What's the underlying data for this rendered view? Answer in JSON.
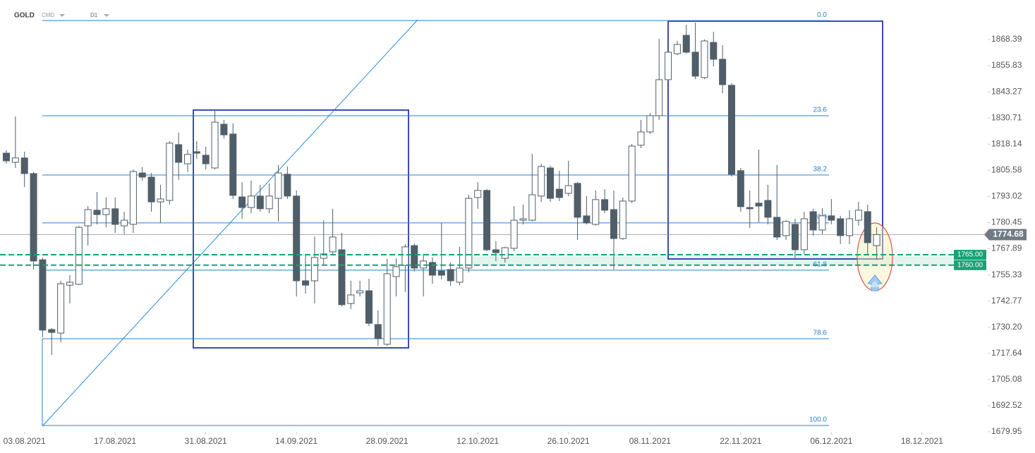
{
  "header": {
    "symbol": "GOLD",
    "market": "CMD",
    "interval": "D1"
  },
  "chart_data": {
    "type": "candlestick",
    "x": [
      "30.07.2021",
      "02.08.2021",
      "03.08.2021",
      "04.08.2021",
      "05.08.2021",
      "06.08.2021",
      "09.08.2021",
      "10.08.2021",
      "11.08.2021",
      "12.08.2021",
      "13.08.2021",
      "16.08.2021",
      "17.08.2021",
      "18.08.2021",
      "19.08.2021",
      "20.08.2021",
      "23.08.2021",
      "24.08.2021",
      "25.08.2021",
      "26.08.2021",
      "27.08.2021",
      "30.08.2021",
      "31.08.2021",
      "01.09.2021",
      "02.09.2021",
      "03.09.2021",
      "06.09.2021",
      "07.09.2021",
      "08.09.2021",
      "09.09.2021",
      "10.09.2021",
      "13.09.2021",
      "14.09.2021",
      "15.09.2021",
      "16.09.2021",
      "17.09.2021",
      "20.09.2021",
      "21.09.2021",
      "22.09.2021",
      "23.09.2021",
      "24.09.2021",
      "27.09.2021",
      "28.09.2021",
      "29.09.2021",
      "30.09.2021",
      "01.10.2021",
      "04.10.2021",
      "05.10.2021",
      "06.10.2021",
      "07.10.2021",
      "08.10.2021",
      "11.10.2021",
      "12.10.2021",
      "13.10.2021",
      "14.10.2021",
      "15.10.2021",
      "18.10.2021",
      "19.10.2021",
      "20.10.2021",
      "21.10.2021",
      "22.10.2021",
      "25.10.2021",
      "26.10.2021",
      "27.10.2021",
      "28.10.2021",
      "29.10.2021",
      "01.11.2021",
      "02.11.2021",
      "03.11.2021",
      "04.11.2021",
      "05.11.2021",
      "08.11.2021",
      "09.11.2021",
      "10.11.2021",
      "11.11.2021",
      "12.11.2021",
      "15.11.2021",
      "16.11.2021",
      "17.11.2021",
      "18.11.2021",
      "19.11.2021",
      "22.11.2021",
      "23.11.2021",
      "24.11.2021",
      "25.11.2021",
      "26.11.2021",
      "29.11.2021",
      "30.11.2021",
      "01.12.2021",
      "02.12.2021",
      "03.12.2021",
      "06.12.2021",
      "07.12.2021",
      "08.12.2021",
      "09.12.2021",
      "10.12.2021",
      "13.12.2021"
    ],
    "open": [
      1813.8,
      1809.4,
      1811.5,
      1804.0,
      1762.6,
      1729.1,
      1727.4,
      1750.4,
      1750.8,
      1778.9,
      1786.4,
      1784.3,
      1787.1,
      1778.9,
      1779.6,
      1804.3,
      1802.3,
      1790.4,
      1791.1,
      1817.9,
      1808.7,
      1814.5,
      1812.8,
      1806.7,
      1827.7,
      1823.0,
      1792.8,
      1787.7,
      1793.2,
      1787.1,
      1792.1,
      1803.7,
      1793.2,
      1752.5,
      1752.5,
      1763.3,
      1766.4,
      1767.4,
      1741.6,
      1746.7,
      1747.7,
      1731.5,
      1722.0,
      1754.5,
      1759.9,
      1769.4,
      1758.6,
      1761.3,
      1757.2,
      1757.9,
      1751.8,
      1758.6,
      1792.5,
      1795.9,
      1767.4,
      1763.3,
      1768.1,
      1781.6,
      1781.6,
      1793.2,
      1806.7,
      1796.5,
      1794.5,
      1799.3,
      1783.7,
      1779.6,
      1791.5,
      1786.7,
      1772.8,
      1790.8,
      1817.6,
      1824.0,
      1831.8,
      1849.1,
      1861.6,
      1870.4,
      1862.3,
      1850.1,
      1867.0,
      1858.9,
      1846.4,
      1805.4,
      1787.7,
      1789.8,
      1791.1,
      1783.0,
      1774.2,
      1779.6,
      1767.4,
      1785.7,
      1776.9,
      1783.7,
      1782.3,
      1774.2,
      1781.6,
      1785.7,
      1769.4
    ],
    "high": [
      1815.2,
      1831.4,
      1814.5,
      1804.7,
      1763.7,
      1729.8,
      1752.5,
      1755.2,
      1778.9,
      1788.4,
      1795.2,
      1792.5,
      1792.5,
      1785.7,
      1806.0,
      1807.1,
      1804.3,
      1798.6,
      1819.6,
      1823.7,
      1815.5,
      1819.6,
      1816.9,
      1834.2,
      1829.8,
      1828.1,
      1799.9,
      1800.6,
      1798.6,
      1799.3,
      1808.1,
      1807.4,
      1795.9,
      1765.4,
      1773.8,
      1781.6,
      1787.1,
      1775.5,
      1752.5,
      1752.5,
      1753.5,
      1738.3,
      1763.0,
      1763.3,
      1770.1,
      1770.4,
      1765.4,
      1763.7,
      1780.3,
      1761.3,
      1768.8,
      1793.8,
      1799.9,
      1796.5,
      1771.5,
      1768.8,
      1788.4,
      1789.1,
      1813.5,
      1808.7,
      1807.7,
      1805.4,
      1810.1,
      1799.9,
      1793.2,
      1795.9,
      1796.5,
      1795.9,
      1792.5,
      1818.2,
      1829.8,
      1833.1,
      1868.7,
      1866.4,
      1867.7,
      1875.5,
      1876.5,
      1868.4,
      1872.1,
      1865.7,
      1847.4,
      1806.7,
      1795.9,
      1815.5,
      1798.6,
      1808.1,
      1781.6,
      1782.3,
      1785.7,
      1787.1,
      1787.4,
      1791.8,
      1783.7,
      1786.4,
      1790.4,
      1789.1,
      1778.2
    ],
    "low": [
      1808.7,
      1806.7,
      1797.6,
      1757.9,
      1725.4,
      1716.9,
      1723.0,
      1741.6,
      1750.4,
      1769.4,
      1779.6,
      1778.2,
      1775.5,
      1774.9,
      1775.5,
      1800.6,
      1785.7,
      1780.3,
      1789.1,
      1801.0,
      1804.7,
      1811.1,
      1806.0,
      1806.0,
      1820.9,
      1791.8,
      1782.3,
      1785.0,
      1785.7,
      1785.0,
      1781.0,
      1791.8,
      1745.0,
      1746.4,
      1741.6,
      1759.9,
      1765.4,
      1740.3,
      1738.9,
      1745.0,
      1730.8,
      1721.3,
      1721.3,
      1745.0,
      1747.1,
      1756.9,
      1745.0,
      1751.1,
      1753.2,
      1750.1,
      1750.4,
      1756.6,
      1787.1,
      1766.7,
      1762.0,
      1761.3,
      1766.7,
      1779.6,
      1781.0,
      1790.4,
      1790.4,
      1790.8,
      1793.2,
      1772.1,
      1779.6,
      1778.9,
      1785.0,
      1757.9,
      1772.1,
      1789.8,
      1816.2,
      1823.0,
      1829.8,
      1848.4,
      1860.9,
      1861.6,
      1849.4,
      1849.4,
      1855.5,
      1842.6,
      1802.6,
      1785.7,
      1777.9,
      1780.6,
      1779.6,
      1772.1,
      1772.1,
      1762.6,
      1765.4,
      1774.2,
      1774.9,
      1779.6,
      1770.1,
      1770.1,
      1778.9,
      1765.4,
      1762.6
    ],
    "close": [
      1810.1,
      1811.5,
      1804.0,
      1762.0,
      1728.8,
      1727.7,
      1751.1,
      1751.8,
      1778.2,
      1786.7,
      1784.3,
      1787.1,
      1779.6,
      1781.6,
      1805.0,
      1802.3,
      1790.4,
      1791.8,
      1818.6,
      1809.4,
      1813.2,
      1813.8,
      1808.7,
      1828.7,
      1822.6,
      1793.5,
      1787.7,
      1793.2,
      1787.1,
      1793.2,
      1804.3,
      1793.2,
      1752.5,
      1750.4,
      1763.7,
      1765.4,
      1773.5,
      1741.0,
      1745.7,
      1747.7,
      1732.1,
      1724.7,
      1755.9,
      1759.3,
      1768.8,
      1758.6,
      1762.0,
      1755.2,
      1755.2,
      1752.5,
      1758.6,
      1792.1,
      1795.9,
      1767.4,
      1766.0,
      1768.4,
      1781.6,
      1782.3,
      1793.8,
      1807.4,
      1792.1,
      1792.5,
      1798.2,
      1783.0,
      1780.3,
      1791.5,
      1786.4,
      1772.8,
      1790.8,
      1817.2,
      1824.0,
      1831.8,
      1849.1,
      1862.3,
      1866.0,
      1862.3,
      1850.8,
      1867.7,
      1858.9,
      1846.7,
      1803.7,
      1788.1,
      1787.1,
      1788.4,
      1783.0,
      1773.5,
      1781.0,
      1767.4,
      1782.3,
      1776.9,
      1783.7,
      1781.6,
      1774.2,
      1782.3,
      1786.4,
      1770.8,
      1774.68
    ],
    "up_color": "#ffffff",
    "down_color": "#505e69",
    "wick_color": "#505e69",
    "ylim": [
      1679.95,
      1887.37
    ],
    "yticks": [
      1868.39,
      1855.83,
      1843.27,
      1830.71,
      1818.14,
      1805.58,
      1793.02,
      1780.45,
      1767.89,
      1755.33,
      1742.77,
      {
        "value": 1730.2,
        "label": "1730.20"
      },
      1717.64,
      1705.08,
      1692.52,
      1679.95
    ],
    "xticks": [
      "03.08.2021",
      "17.08.2021",
      "31.08.2021",
      "14.09.2021",
      "28.09.2021",
      "12.10.2021",
      "26.10.2021",
      "08.11.2021",
      "22.11.2021",
      "06.12.2021",
      "18.12.2021"
    ],
    "fibonacci": {
      "color": "#2a7fcf",
      "levels": [
        {
          "label": "0.0",
          "price": 1877.5
        },
        {
          "label": "23.6",
          "price": 1831.8
        },
        {
          "label": "38.2",
          "price": 1803.3
        },
        {
          "label": "50.0",
          "price": 1780.3
        },
        {
          "label": "61.8",
          "price": 1757.6
        },
        {
          "label": "78.6",
          "price": 1724.7
        },
        {
          "label": "100.0",
          "price": 1683.0
        }
      ]
    },
    "zones": {
      "color": "#17a276",
      "values": [
        1765,
        1760
      ],
      "value_labels": [
        "1765.00",
        "1760.00"
      ]
    },
    "grid": false
  }
}
